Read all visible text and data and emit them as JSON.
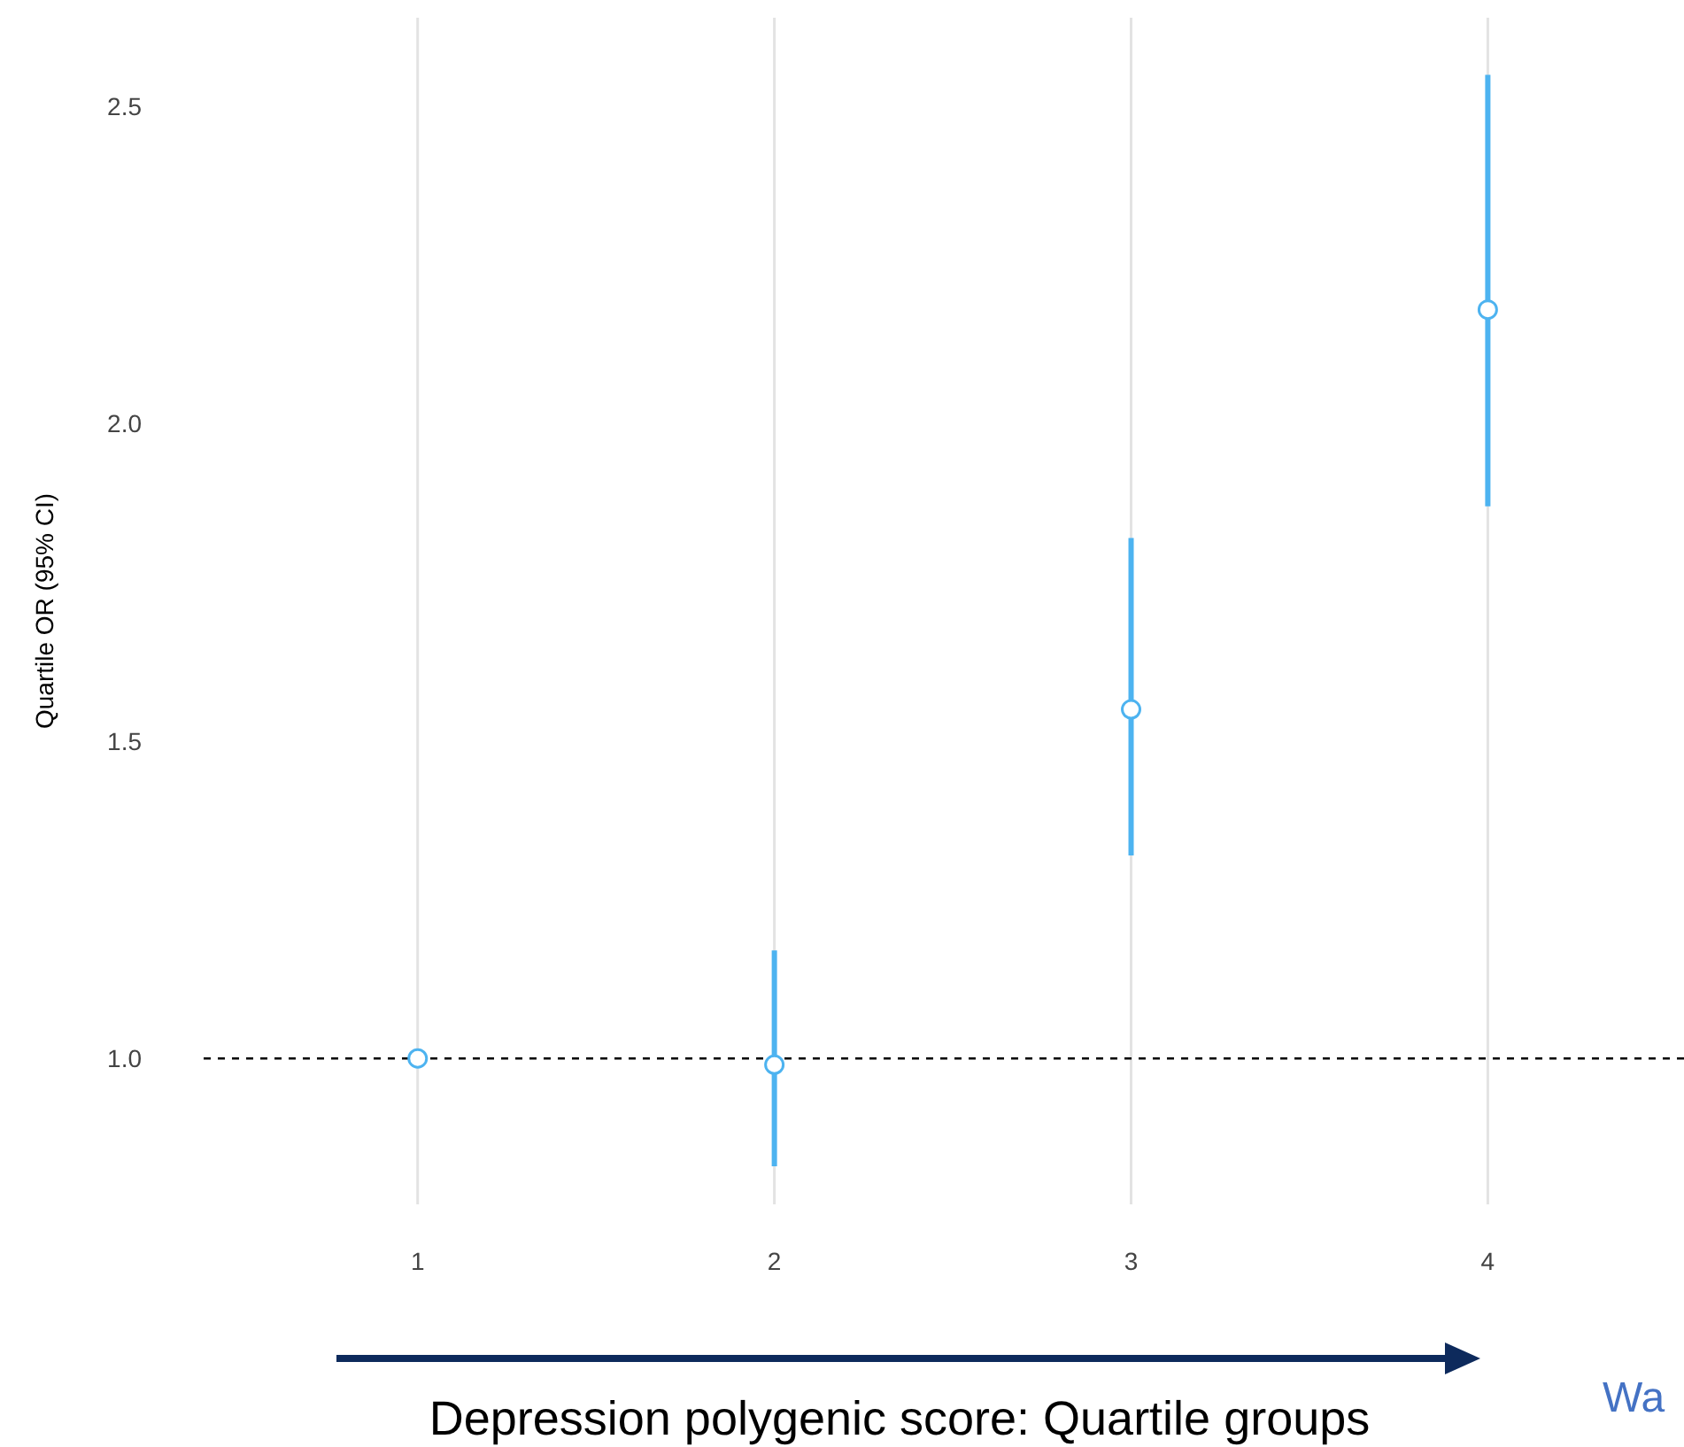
{
  "chart_data": {
    "type": "scatter",
    "xlabel": "Depression polygenic score: Quartile groups",
    "ylabel": "Quartile OR (95% CI)",
    "x": [
      1,
      2,
      3,
      4
    ],
    "series": [
      {
        "color": "#4db3f0",
        "values": [
          1.0,
          0.99,
          1.55,
          2.18
        ],
        "errors": [
          null,
          [
            0.83,
            1.17
          ],
          [
            1.32,
            1.82
          ],
          [
            1.87,
            2.55
          ]
        ]
      }
    ],
    "xlim": [
      0.4,
      4.55
    ],
    "xticks": [
      1,
      2,
      3,
      4
    ],
    "ylim": [
      0.77,
      2.64
    ],
    "yticks": [
      {
        "value": 1,
        "label": "1.0"
      },
      {
        "value": 1.5,
        "label": "1.5"
      },
      {
        "value": 2,
        "label": "2.0"
      },
      {
        "value": 2.5,
        "label": "2.5"
      }
    ],
    "grid": "x",
    "marker": "circle",
    "ref_lines": [
      {
        "axis": "y",
        "value": 1,
        "color": "#000000",
        "line_style": "dashed"
      }
    ],
    "annotations": [
      "Wa"
    ]
  }
}
